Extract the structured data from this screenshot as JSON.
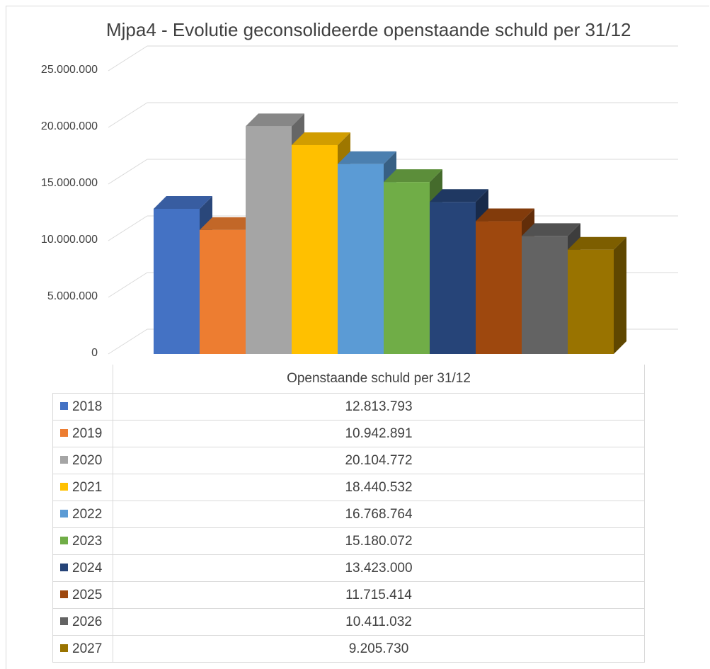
{
  "chart_data": {
    "type": "bar",
    "title": "Mjpa4 - Evolutie geconsolideerde openstaande schuld per 31/12",
    "series_name": "Openstaande schuld per 31/12",
    "categories": [
      "2018",
      "2019",
      "2020",
      "2021",
      "2022",
      "2023",
      "2024",
      "2025",
      "2026",
      "2027"
    ],
    "values": [
      12813793,
      10942891,
      20104772,
      18440532,
      16768764,
      15180072,
      13423000,
      11715414,
      10411032,
      9205730
    ],
    "value_labels": [
      "12.813.793",
      "10.942.891",
      "20.104.772",
      "18.440.532",
      "16.768.764",
      "15.180.072",
      "13.423.000",
      "11.715.414",
      "10.411.032",
      "9.205.730"
    ],
    "colors": [
      "#4472C4",
      "#ED7D31",
      "#A5A5A5",
      "#FFC000",
      "#5B9BD5",
      "#70AD47",
      "#264478",
      "#9E480E",
      "#636363",
      "#997300"
    ],
    "ylim": [
      0,
      25000000
    ],
    "yticks": [
      0,
      5000000,
      10000000,
      15000000,
      20000000,
      25000000
    ],
    "ytick_labels": [
      "0",
      "5.000.000",
      "10.000.000",
      "15.000.000",
      "20.000.000",
      "25.000.000"
    ],
    "grid": true,
    "style": "3d-column",
    "data_table": true
  }
}
